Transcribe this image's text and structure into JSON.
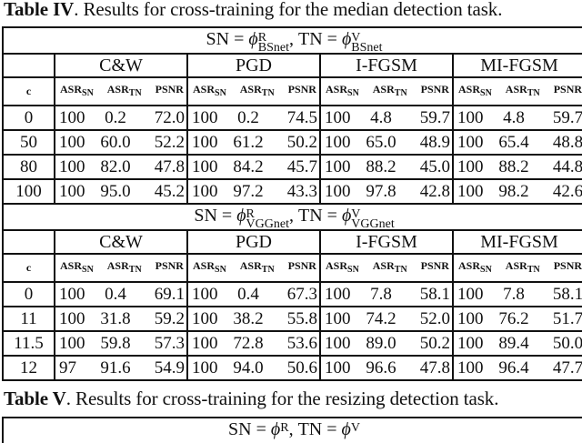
{
  "table4": {
    "caption_label": "Table IV",
    "caption_text": ". Results for cross-training for the median detection task.",
    "metric_labels": {
      "c": "c",
      "asr": "ASR",
      "sn": "SN",
      "tn": "TN",
      "psnr": "PSNR"
    },
    "attacks": [
      "C&W",
      "PGD",
      "I-FGSM",
      "MI-FGSM"
    ],
    "blocks": [
      {
        "sn_label": "SN = ",
        "sn_sym": "ϕ",
        "sn_sup": "R",
        "sn_sub": "BSnet",
        "tn_label": ", TN = ",
        "tn_sym": "ϕ",
        "tn_sup": "V",
        "tn_sub": "BSnet",
        "rows": [
          {
            "c": "0",
            "cw": [
              "100",
              "0.2",
              "72.0"
            ],
            "pgd": [
              "100",
              "0.2",
              "74.5"
            ],
            "ifgsm": [
              "100",
              "4.8",
              "59.7"
            ],
            "mifgsm": [
              "100",
              "4.8",
              "59.7"
            ]
          },
          {
            "c": "50",
            "cw": [
              "100",
              "60.0",
              "52.2"
            ],
            "pgd": [
              "100",
              "61.2",
              "50.2"
            ],
            "ifgsm": [
              "100",
              "65.0",
              "48.9"
            ],
            "mifgsm": [
              "100",
              "65.4",
              "48.8"
            ]
          },
          {
            "c": "80",
            "cw": [
              "100",
              "82.0",
              "47.8"
            ],
            "pgd": [
              "100",
              "84.2",
              "45.7"
            ],
            "ifgsm": [
              "100",
              "88.2",
              "45.0"
            ],
            "mifgsm": [
              "100",
              "88.2",
              "44.8"
            ]
          },
          {
            "c": "100",
            "cw": [
              "100",
              "95.0",
              "45.2"
            ],
            "pgd": [
              "100",
              "97.2",
              "43.3"
            ],
            "ifgsm": [
              "100",
              "97.8",
              "42.8"
            ],
            "mifgsm": [
              "100",
              "98.2",
              "42.6"
            ]
          }
        ]
      },
      {
        "sn_label": "SN = ",
        "sn_sym": "ϕ",
        "sn_sup": "R",
        "sn_sub": "VGGnet",
        "tn_label": ", TN = ",
        "tn_sym": "ϕ",
        "tn_sup": "V",
        "tn_sub": "VGGnet",
        "rows": [
          {
            "c": "0",
            "cw": [
              "100",
              "0.4",
              "69.1"
            ],
            "pgd": [
              "100",
              "0.4",
              "67.3"
            ],
            "ifgsm": [
              "100",
              "7.8",
              "58.1"
            ],
            "mifgsm": [
              "100",
              "7.8",
              "58.1"
            ]
          },
          {
            "c": "11",
            "cw": [
              "100",
              "31.8",
              "59.2"
            ],
            "pgd": [
              "100",
              "38.2",
              "55.8"
            ],
            "ifgsm": [
              "100",
              "74.2",
              "52.0"
            ],
            "mifgsm": [
              "100",
              "76.2",
              "51.7"
            ]
          },
          {
            "c": "11.5",
            "cw": [
              "100",
              "59.8",
              "57.3"
            ],
            "pgd": [
              "100",
              "72.8",
              "53.6"
            ],
            "ifgsm": [
              "100",
              "89.0",
              "50.2"
            ],
            "mifgsm": [
              "100",
              "89.4",
              "50.0"
            ]
          },
          {
            "c": "12",
            "cw": [
              "97",
              "91.6",
              "54.9"
            ],
            "pgd": [
              "100",
              "94.0",
              "50.6"
            ],
            "ifgsm": [
              "100",
              "96.6",
              "47.8"
            ],
            "mifgsm": [
              "100",
              "96.4",
              "47.7"
            ]
          }
        ]
      }
    ]
  },
  "table5": {
    "caption_label": "Table V",
    "caption_text": ". Results for cross-training for the resizing detection task.",
    "sn_label": "SN = ",
    "sn_sym": "ϕ",
    "sn_sup": "R",
    "tn_label": ", TN = ",
    "tn_sym": "ϕ",
    "tn_sup": "V"
  }
}
